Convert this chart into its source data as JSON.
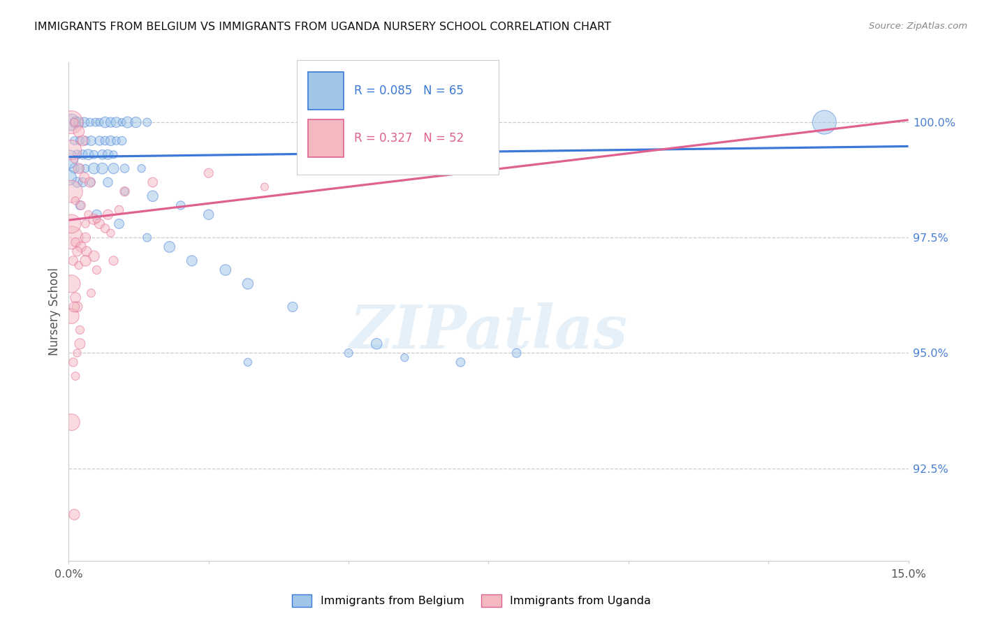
{
  "title": "IMMIGRANTS FROM BELGIUM VS IMMIGRANTS FROM UGANDA NURSERY SCHOOL CORRELATION CHART",
  "source": "Source: ZipAtlas.com",
  "ylabel": "Nursery School",
  "ytick_values": [
    100.0,
    97.5,
    95.0,
    92.5
  ],
  "xlim": [
    0.0,
    15.0
  ],
  "ylim": [
    90.5,
    101.3
  ],
  "legend_blue_label": "Immigrants from Belgium",
  "legend_pink_label": "Immigrants from Uganda",
  "R_blue": 0.085,
  "N_blue": 65,
  "R_pink": 0.327,
  "N_pink": 52,
  "color_blue_fill": "#9fc5e8",
  "color_pink_fill": "#f4b8c1",
  "color_blue_edge": "#3c78d8",
  "color_pink_edge": "#e06090",
  "color_blue_line": "#3c78d8",
  "color_pink_line": "#e06090",
  "watermark_text": "ZIPatlas",
  "blue_line_x": [
    0.0,
    15.0
  ],
  "blue_line_y": [
    99.25,
    99.48
  ],
  "pink_line_x": [
    0.0,
    15.0
  ],
  "pink_line_y": [
    97.88,
    100.05
  ],
  "blue_points": [
    [
      0.05,
      100.0
    ],
    [
      0.12,
      100.0
    ],
    [
      0.18,
      100.0
    ],
    [
      0.28,
      100.0
    ],
    [
      0.38,
      100.0
    ],
    [
      0.48,
      100.0
    ],
    [
      0.55,
      100.0
    ],
    [
      0.65,
      100.0
    ],
    [
      0.75,
      100.0
    ],
    [
      0.85,
      100.0
    ],
    [
      0.95,
      100.0
    ],
    [
      1.05,
      100.0
    ],
    [
      1.2,
      100.0
    ],
    [
      1.4,
      100.0
    ],
    [
      0.1,
      99.6
    ],
    [
      0.2,
      99.6
    ],
    [
      0.3,
      99.6
    ],
    [
      0.4,
      99.6
    ],
    [
      0.55,
      99.6
    ],
    [
      0.65,
      99.6
    ],
    [
      0.75,
      99.6
    ],
    [
      0.85,
      99.6
    ],
    [
      0.95,
      99.6
    ],
    [
      0.15,
      99.3
    ],
    [
      0.25,
      99.3
    ],
    [
      0.35,
      99.3
    ],
    [
      0.45,
      99.3
    ],
    [
      0.6,
      99.3
    ],
    [
      0.7,
      99.3
    ],
    [
      0.8,
      99.3
    ],
    [
      0.1,
      99.0
    ],
    [
      0.2,
      99.0
    ],
    [
      0.3,
      99.0
    ],
    [
      0.45,
      99.0
    ],
    [
      0.6,
      99.0
    ],
    [
      0.8,
      99.0
    ],
    [
      1.0,
      99.0
    ],
    [
      1.3,
      99.0
    ],
    [
      0.15,
      98.7
    ],
    [
      0.25,
      98.7
    ],
    [
      0.4,
      98.7
    ],
    [
      0.7,
      98.7
    ],
    [
      1.0,
      98.5
    ],
    [
      1.5,
      98.4
    ],
    [
      2.0,
      98.2
    ],
    [
      2.5,
      98.0
    ],
    [
      0.2,
      98.2
    ],
    [
      0.5,
      98.0
    ],
    [
      0.9,
      97.8
    ],
    [
      1.4,
      97.5
    ],
    [
      1.8,
      97.3
    ],
    [
      2.2,
      97.0
    ],
    [
      2.8,
      96.8
    ],
    [
      3.2,
      96.5
    ],
    [
      4.0,
      96.0
    ],
    [
      5.5,
      95.2
    ],
    [
      3.2,
      94.8
    ],
    [
      5.0,
      95.0
    ],
    [
      6.0,
      94.9
    ],
    [
      7.0,
      94.8
    ],
    [
      0.0,
      99.2
    ],
    [
      0.0,
      98.8
    ],
    [
      13.5,
      100.0
    ],
    [
      8.0,
      95.0
    ]
  ],
  "pink_points": [
    [
      0.05,
      100.0
    ],
    [
      0.1,
      100.0
    ],
    [
      0.18,
      99.8
    ],
    [
      0.25,
      99.6
    ],
    [
      0.05,
      99.4
    ],
    [
      0.1,
      99.2
    ],
    [
      0.18,
      99.0
    ],
    [
      0.28,
      98.8
    ],
    [
      0.38,
      98.7
    ],
    [
      0.05,
      98.5
    ],
    [
      0.12,
      98.3
    ],
    [
      0.22,
      98.2
    ],
    [
      0.35,
      98.0
    ],
    [
      0.45,
      97.9
    ],
    [
      0.55,
      97.8
    ],
    [
      0.65,
      97.7
    ],
    [
      0.75,
      97.6
    ],
    [
      0.05,
      97.5
    ],
    [
      0.12,
      97.4
    ],
    [
      0.22,
      97.3
    ],
    [
      0.32,
      97.2
    ],
    [
      0.45,
      97.1
    ],
    [
      0.08,
      97.0
    ],
    [
      0.18,
      96.9
    ],
    [
      0.05,
      96.5
    ],
    [
      0.12,
      96.2
    ],
    [
      0.05,
      95.8
    ],
    [
      0.15,
      96.0
    ],
    [
      1.0,
      98.5
    ],
    [
      1.5,
      98.7
    ],
    [
      2.5,
      98.9
    ],
    [
      3.5,
      98.6
    ],
    [
      0.3,
      97.8
    ],
    [
      0.5,
      97.9
    ],
    [
      0.7,
      98.0
    ],
    [
      0.9,
      98.1
    ],
    [
      0.15,
      97.2
    ],
    [
      0.3,
      97.0
    ],
    [
      0.5,
      96.8
    ],
    [
      0.8,
      97.0
    ],
    [
      0.1,
      96.0
    ],
    [
      0.2,
      95.5
    ],
    [
      0.15,
      95.0
    ],
    [
      0.08,
      94.8
    ],
    [
      0.12,
      94.5
    ],
    [
      0.05,
      93.5
    ],
    [
      0.05,
      97.8
    ],
    [
      0.3,
      97.5
    ],
    [
      0.1,
      91.5
    ],
    [
      0.2,
      95.2
    ],
    [
      0.4,
      96.3
    ]
  ],
  "blue_large_points": [
    [
      0.0,
      99.0
    ]
  ],
  "pink_large_points": [
    [
      0.02,
      98.5
    ],
    [
      0.03,
      99.2
    ]
  ]
}
